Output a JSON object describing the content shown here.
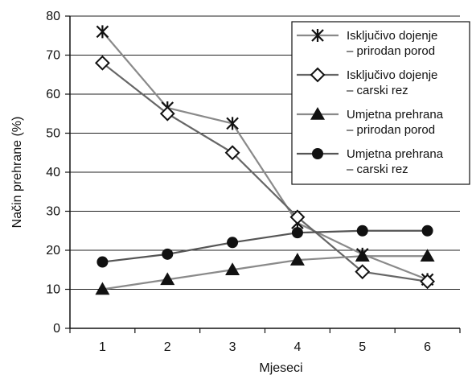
{
  "chart_data": {
    "type": "line",
    "title": "",
    "xlabel": "Mjeseci",
    "ylabel": "Način prehrane (%)",
    "x": [
      1,
      2,
      3,
      4,
      5,
      6
    ],
    "xlim": [
      0.5,
      6.5
    ],
    "ylim": [
      0,
      80
    ],
    "yticks": [
      0,
      10,
      20,
      30,
      40,
      50,
      60,
      70,
      80
    ],
    "xticks": [
      1,
      2,
      3,
      4,
      5,
      6
    ],
    "grid": "horizontal",
    "legend_position": "top-right",
    "series": [
      {
        "name_lines": [
          "Isključivo dojenje",
          "– prirodan porod"
        ],
        "marker": "asterisk",
        "color": "#8a8a8a",
        "values": [
          76,
          56.5,
          52.5,
          27,
          19,
          12.5
        ]
      },
      {
        "name_lines": [
          "Isključivo dojenje",
          "– carski rez"
        ],
        "marker": "diamond-open",
        "color": "#666666",
        "values": [
          68,
          55,
          45,
          28.5,
          14.5,
          12
        ]
      },
      {
        "name_lines": [
          "Umjetna prehrana",
          "– prirodan porod"
        ],
        "marker": "triangle",
        "color": "#8a8a8a",
        "values": [
          10,
          12.5,
          15,
          17.5,
          18.5,
          18.5
        ]
      },
      {
        "name_lines": [
          "Umjetna prehrana",
          "– carski rez"
        ],
        "marker": "circle",
        "color": "#555555",
        "values": [
          17,
          19,
          22,
          24.5,
          25,
          25
        ]
      }
    ]
  }
}
